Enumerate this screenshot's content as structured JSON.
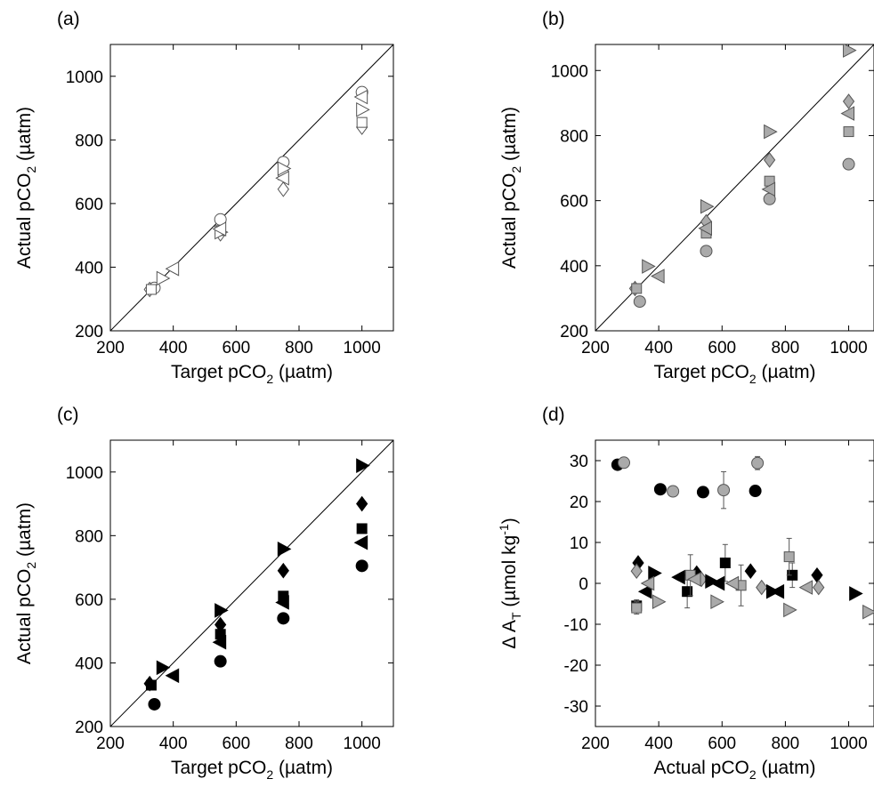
{
  "chart_data": [
    {
      "type": "scatter",
      "panel_label": "(a)",
      "xlabel": "Target pCO",
      "xlabel_sub": "2",
      "xlabel_unit": " (µatm)",
      "ylabel": "Actual pCO",
      "ylabel_sub": "2",
      "ylabel_unit": " (µatm)",
      "xlim": [
        200,
        1100
      ],
      "ylim": [
        200,
        1100
      ],
      "xticks": [
        200,
        400,
        600,
        800,
        1000
      ],
      "yticks": [
        200,
        400,
        600,
        800,
        1000
      ],
      "identity_line": true,
      "series": [
        {
          "marker": "circle",
          "fill": "#ffffff",
          "x": [
            340,
            550,
            750,
            1000
          ],
          "y": [
            335,
            550,
            730,
            950
          ]
        },
        {
          "marker": "diamond",
          "fill": "#ffffff",
          "x": [
            325,
            550,
            750,
            1000
          ],
          "y": [
            330,
            505,
            645,
            840
          ]
        },
        {
          "marker": "square",
          "fill": "#ffffff",
          "x": [
            330,
            550,
            750,
            1000
          ],
          "y": [
            330,
            515,
            690,
            855
          ]
        },
        {
          "marker": "triangle-right",
          "fill": "#ffffff",
          "x": [
            365,
            550,
            750,
            1000
          ],
          "y": [
            365,
            510,
            710,
            895
          ]
        },
        {
          "marker": "triangle-left",
          "fill": "#ffffff",
          "x": [
            400,
            550,
            750,
            1000
          ],
          "y": [
            395,
            520,
            680,
            935
          ]
        }
      ]
    },
    {
      "type": "scatter",
      "panel_label": "(b)",
      "xlabel": "Target pCO",
      "xlabel_sub": "2",
      "xlabel_unit": " (µatm)",
      "ylabel": "Actual pCO",
      "ylabel_sub": "2",
      "ylabel_unit": " (µatm)",
      "xlim": [
        200,
        1080
      ],
      "ylim": [
        200,
        1080
      ],
      "xticks": [
        200,
        400,
        600,
        800,
        1000
      ],
      "xtick_labels": [
        "200",
        "400",
        "600",
        "800",
        "1000"
      ],
      "yticks": [
        200,
        400,
        600,
        800,
        1000
      ],
      "identity_line": true,
      "series": [
        {
          "marker": "circle",
          "fill": "#aaaaaa",
          "x": [
            340,
            550,
            750,
            1000
          ],
          "y": [
            290,
            445,
            605,
            712
          ]
        },
        {
          "marker": "diamond",
          "fill": "#aaaaaa",
          "x": [
            325,
            550,
            750,
            1000
          ],
          "y": [
            330,
            535,
            725,
            905
          ]
        },
        {
          "marker": "square",
          "fill": "#aaaaaa",
          "x": [
            330,
            550,
            750,
            1000
          ],
          "y": [
            330,
            500,
            660,
            812
          ]
        },
        {
          "marker": "triangle-right",
          "fill": "#aaaaaa",
          "x": [
            365,
            550,
            750,
            1000
          ],
          "y": [
            398,
            582,
            812,
            1062
          ]
        },
        {
          "marker": "triangle-left",
          "fill": "#aaaaaa",
          "x": [
            400,
            550,
            750,
            1000
          ],
          "y": [
            368,
            515,
            635,
            868
          ]
        }
      ]
    },
    {
      "type": "scatter",
      "panel_label": "(c)",
      "xlabel": "Target pCO",
      "xlabel_sub": "2",
      "xlabel_unit": " (µatm)",
      "ylabel": "Actual pCO",
      "ylabel_sub": "2",
      "ylabel_unit": " (µatm)",
      "xlim": [
        200,
        1100
      ],
      "ylim": [
        200,
        1100
      ],
      "xticks": [
        200,
        400,
        600,
        800,
        1000
      ],
      "yticks": [
        200,
        400,
        600,
        800,
        1000
      ],
      "identity_line": true,
      "series": [
        {
          "marker": "circle",
          "fill": "#000000",
          "x": [
            340,
            550,
            750,
            1000
          ],
          "y": [
            270,
            405,
            540,
            705
          ]
        },
        {
          "marker": "diamond",
          "fill": "#000000",
          "x": [
            325,
            550,
            750,
            1000
          ],
          "y": [
            335,
            520,
            690,
            900
          ]
        },
        {
          "marker": "square",
          "fill": "#000000",
          "x": [
            330,
            550,
            750,
            1000
          ],
          "y": [
            330,
            490,
            610,
            822
          ]
        },
        {
          "marker": "triangle-right",
          "fill": "#000000",
          "x": [
            365,
            550,
            750,
            1000
          ],
          "y": [
            385,
            565,
            758,
            1020
          ]
        },
        {
          "marker": "triangle-left",
          "fill": "#000000",
          "x": [
            400,
            550,
            750,
            1000
          ],
          "y": [
            360,
            465,
            590,
            778
          ]
        }
      ]
    },
    {
      "type": "scatter",
      "panel_label": "(d)",
      "xlabel": "Actual pCO",
      "xlabel_sub": "2",
      "xlabel_unit": " (µatm)",
      "ylabel": "Δ A",
      "ylabel_sub": "T",
      "ylabel_unit": " (µmol kg",
      "ylabel_sup": "-1",
      "ylabel_tail": ")",
      "xlim": [
        200,
        1080
      ],
      "ylim": [
        -35,
        35
      ],
      "xticks": [
        200,
        400,
        600,
        800,
        1000
      ],
      "xtick_labels": [
        "200",
        "400",
        "600",
        "800",
        "1000"
      ],
      "yticks": [
        -30,
        -20,
        -10,
        0,
        10,
        20,
        30
      ],
      "identity_line": false,
      "series": [
        {
          "marker": "circle",
          "fill": "#000000",
          "x": [
            270,
            405,
            540,
            705
          ],
          "y": [
            29,
            23,
            22.3,
            22.6
          ]
        },
        {
          "marker": "circle",
          "fill": "#aaaaaa",
          "x": [
            290,
            445,
            605,
            712
          ],
          "y": [
            29.5,
            22.5,
            22.8,
            29.4
          ],
          "yerr": [
            0,
            0,
            4.5,
            1.6
          ],
          "xerr": [
            0,
            0,
            18,
            0
          ]
        },
        {
          "marker": "diamond",
          "fill": "#000000",
          "x": [
            335,
            520,
            690,
            900
          ],
          "y": [
            5,
            2.5,
            3,
            2
          ]
        },
        {
          "marker": "diamond",
          "fill": "#aaaaaa",
          "x": [
            330,
            535,
            725,
            905
          ],
          "y": [
            3,
            1,
            -1,
            -1
          ]
        },
        {
          "marker": "square",
          "fill": "#000000",
          "x": [
            330,
            490,
            610,
            822
          ],
          "y": [
            -5.5,
            -2,
            5,
            2
          ],
          "yerr": [
            1.5,
            4,
            4.5,
            3
          ]
        },
        {
          "marker": "square",
          "fill": "#aaaaaa",
          "x": [
            330,
            500,
            660,
            812
          ],
          "y": [
            -6,
            2,
            -0.5,
            6.5
          ],
          "yerr": [
            1.5,
            5,
            5,
            4.5
          ]
        },
        {
          "marker": "triangle-right",
          "fill": "#000000",
          "x": [
            385,
            565,
            758,
            1020
          ],
          "y": [
            2.5,
            0.5,
            -2,
            -2.5
          ]
        },
        {
          "marker": "triangle-right",
          "fill": "#aaaaaa",
          "x": [
            398,
            582,
            812,
            1062
          ],
          "y": [
            -4.5,
            -4.5,
            -6.5,
            -7
          ]
        },
        {
          "marker": "triangle-left",
          "fill": "#000000",
          "x": [
            360,
            465,
            590,
            778
          ],
          "y": [
            -2,
            1.5,
            0,
            -2
          ]
        },
        {
          "marker": "triangle-left",
          "fill": "#aaaaaa",
          "x": [
            368,
            515,
            635,
            868
          ],
          "y": [
            0,
            1,
            0,
            -1
          ]
        }
      ]
    }
  ]
}
